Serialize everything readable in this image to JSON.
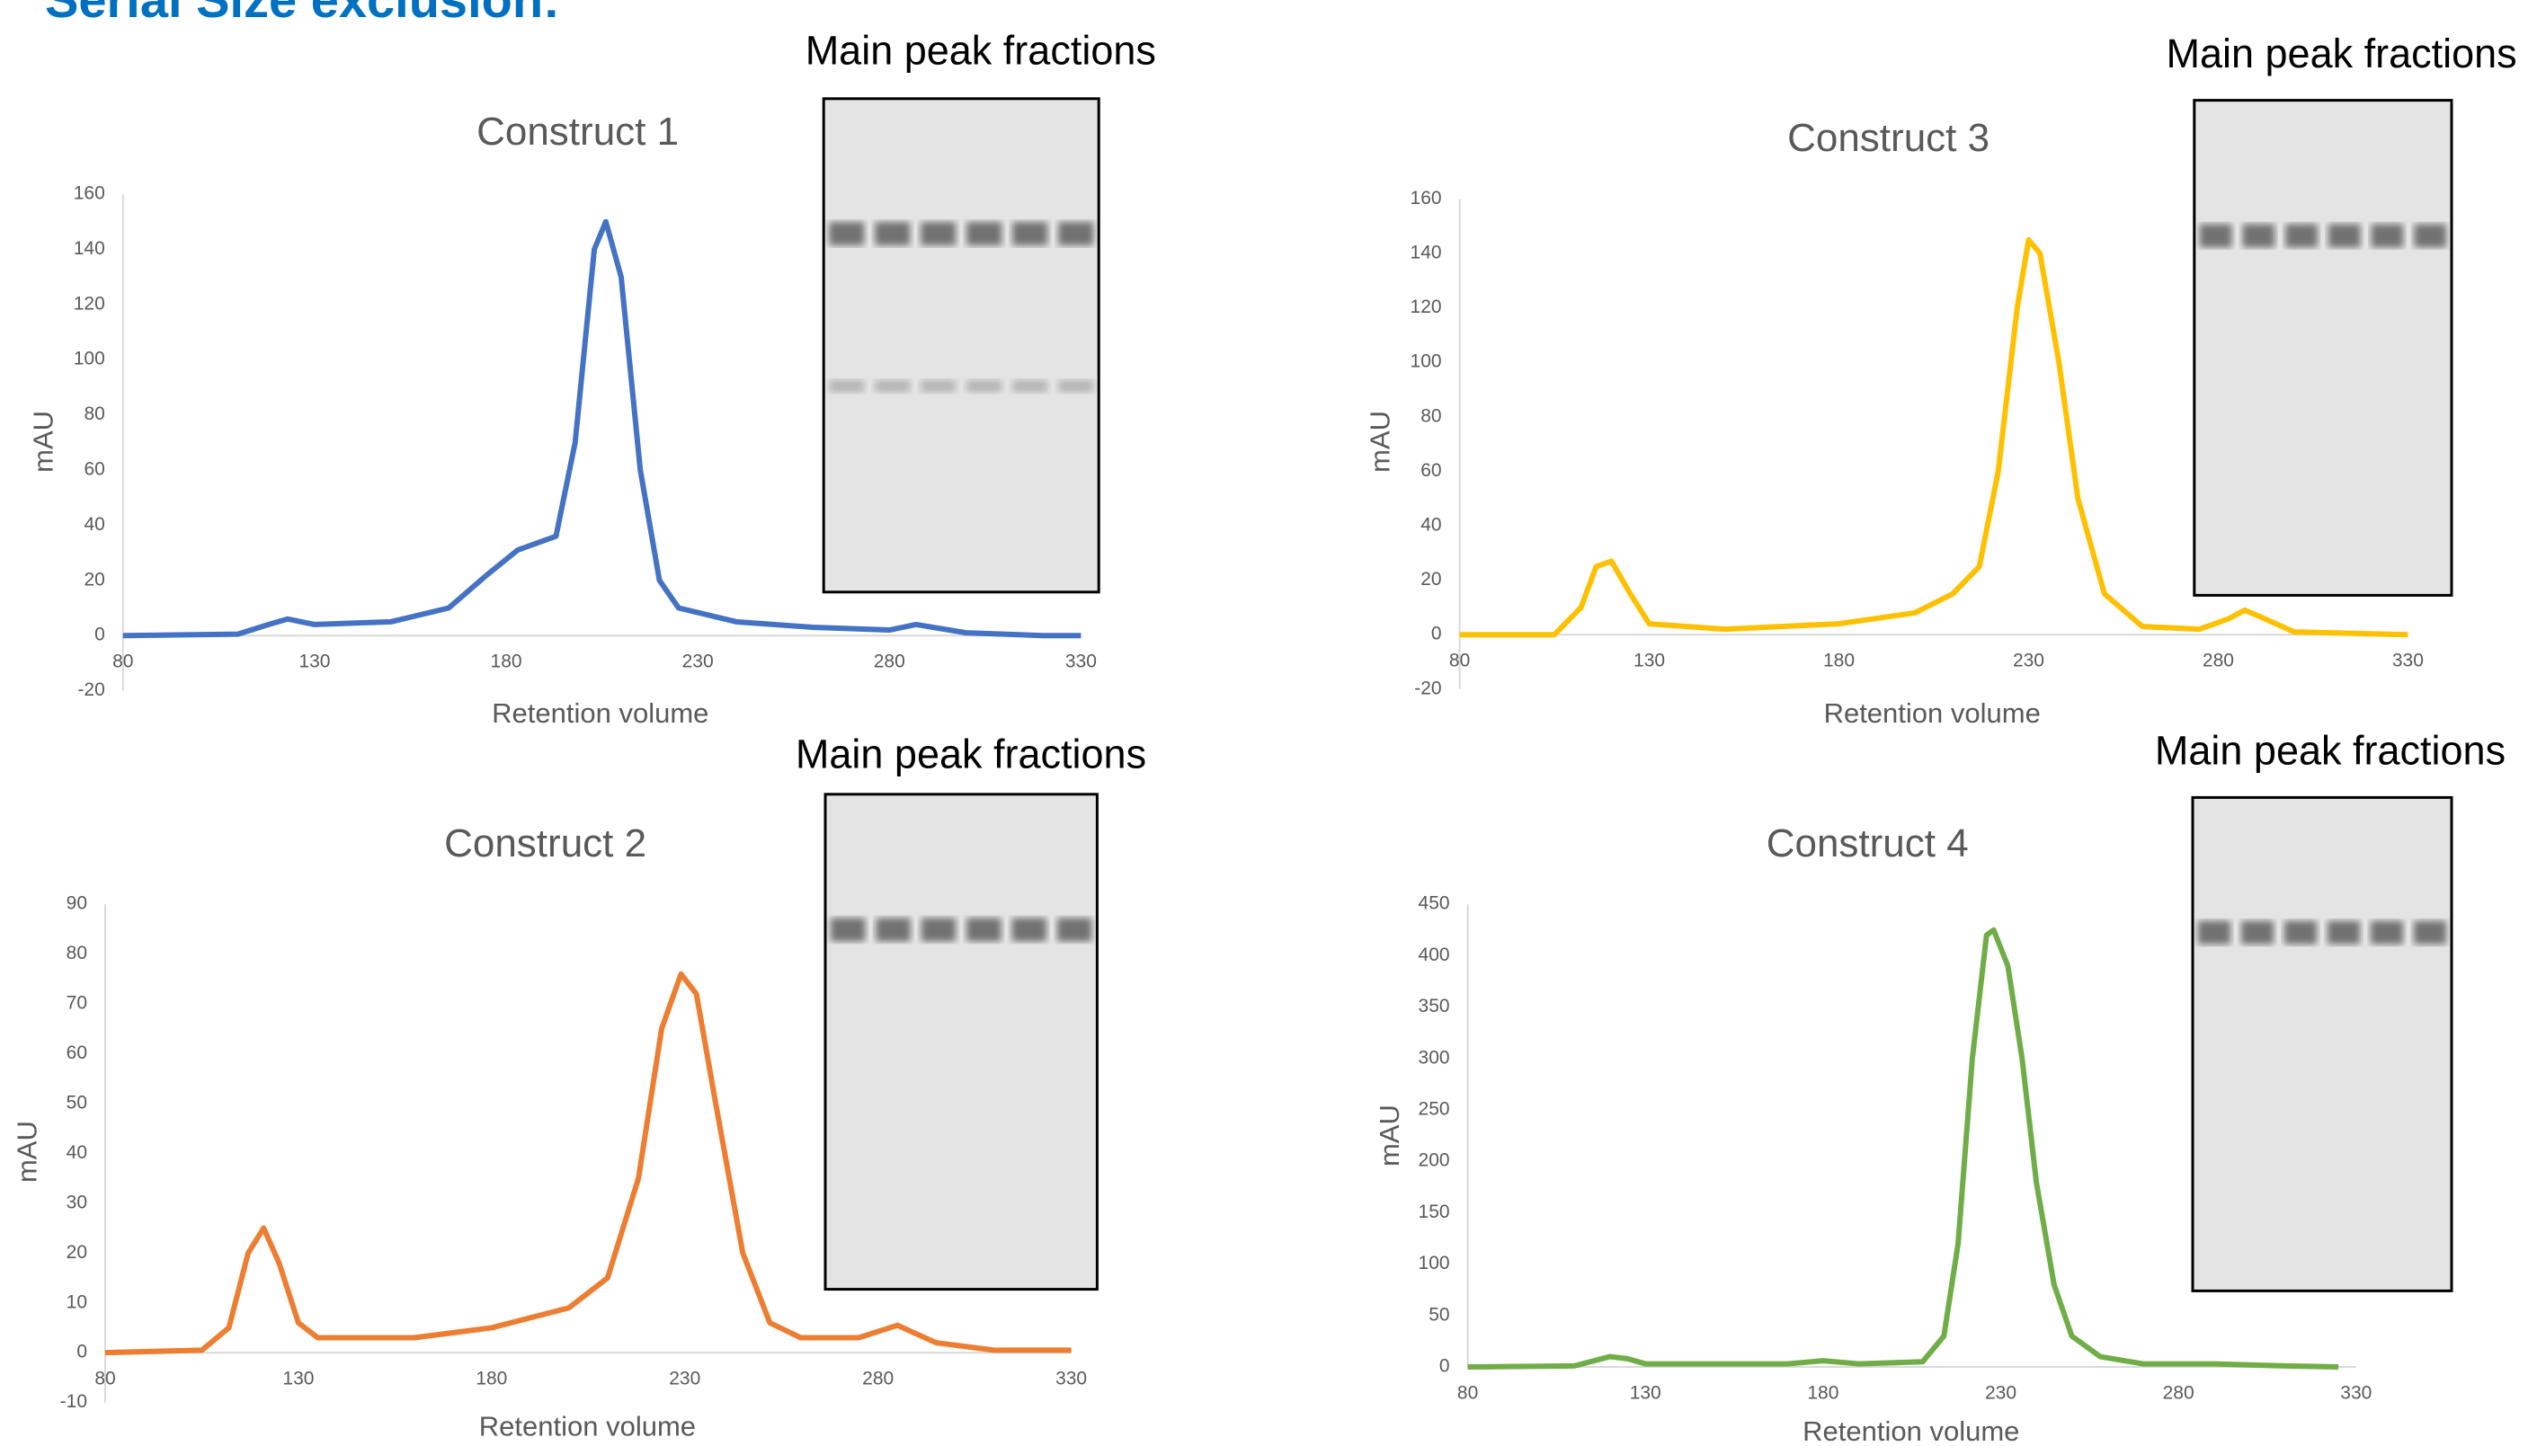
{
  "title": "Serial Size exclusion:",
  "chart_data": [
    {
      "type": "line",
      "title": "Construct 1",
      "annotation": "Main peak fractions",
      "x_label": "Retention volume",
      "y_label": "mAU",
      "xlim": [
        80,
        330
      ],
      "xticks": [
        80,
        130,
        180,
        230,
        280,
        330
      ],
      "ylim": [
        -20,
        160
      ],
      "yticks": [
        -20,
        0,
        20,
        40,
        60,
        80,
        100,
        120,
        140,
        160
      ],
      "series": [
        {
          "color": "#4472c4",
          "x": [
            80,
            110,
            118,
            123,
            130,
            150,
            165,
            175,
            183,
            193,
            198,
            203,
            206,
            210,
            215,
            220,
            225,
            240,
            260,
            280,
            287,
            300,
            320,
            330
          ],
          "values": [
            0,
            0.5,
            4,
            6,
            4,
            5,
            10,
            22,
            31,
            36,
            70,
            140,
            150,
            130,
            60,
            20,
            10,
            5,
            3,
            2,
            4,
            1,
            0,
            0
          ]
        }
      ]
    },
    {
      "type": "line",
      "title": "Construct 2",
      "annotation": "Main peak fractions",
      "x_label": "Retention volume",
      "y_label": "mAU",
      "xlim": [
        80,
        330
      ],
      "xticks": [
        80,
        130,
        180,
        230,
        280,
        330
      ],
      "ylim": [
        -10,
        90
      ],
      "yticks": [
        -10,
        0,
        10,
        20,
        30,
        40,
        50,
        60,
        70,
        80,
        90
      ],
      "series": [
        {
          "color": "#ed7d31",
          "x": [
            80,
            105,
            112,
            117,
            121,
            125,
            130,
            135,
            160,
            180,
            200,
            210,
            218,
            224,
            229,
            233,
            238,
            245,
            252,
            260,
            275,
            285,
            295,
            310,
            330
          ],
          "values": [
            0,
            0.5,
            5,
            20,
            25,
            18,
            6,
            3,
            3,
            5,
            9,
            15,
            35,
            65,
            76,
            72,
            50,
            20,
            6,
            3,
            3,
            5.5,
            2,
            0.5,
            0.5
          ]
        }
      ]
    },
    {
      "type": "line",
      "title": "Construct 3",
      "annotation": "Main peak fractions",
      "x_label": "Retention volume",
      "y_label": "mAU",
      "xlim": [
        80,
        330
      ],
      "xticks": [
        80,
        130,
        180,
        230,
        280,
        330
      ],
      "ylim": [
        -20,
        160
      ],
      "yticks": [
        -20,
        0,
        20,
        40,
        60,
        80,
        100,
        120,
        140,
        160
      ],
      "series": [
        {
          "color": "#ffc000",
          "x": [
            80,
            105,
            112,
            116,
            120,
            125,
            130,
            150,
            180,
            200,
            210,
            217,
            222,
            227,
            230,
            233,
            238,
            243,
            250,
            260,
            275,
            283,
            287,
            292,
            300,
            330
          ],
          "values": [
            0,
            0,
            10,
            25,
            27,
            15,
            4,
            2,
            4,
            8,
            15,
            25,
            60,
            120,
            145,
            140,
            100,
            50,
            15,
            3,
            2,
            6,
            9,
            6,
            1,
            0
          ]
        }
      ]
    },
    {
      "type": "line",
      "title": "Construct 4",
      "annotation": "Main peak fractions",
      "x_label": "Retention volume",
      "y_label": "mAU",
      "xlim": [
        80,
        330
      ],
      "xticks": [
        80,
        130,
        180,
        230,
        280,
        330
      ],
      "ylim": [
        0,
        450
      ],
      "yticks": [
        0,
        50,
        100,
        150,
        200,
        250,
        300,
        350,
        400,
        450
      ],
      "series": [
        {
          "color": "#70ad47",
          "x": [
            80,
            110,
            120,
            125,
            130,
            170,
            180,
            190,
            208,
            214,
            218,
            222,
            226,
            228,
            232,
            236,
            240,
            245,
            250,
            258,
            270,
            290,
            310,
            325
          ],
          "values": [
            0,
            1,
            10,
            8,
            3,
            3,
            6,
            3,
            5,
            30,
            120,
            300,
            420,
            425,
            390,
            300,
            180,
            80,
            30,
            10,
            3,
            3,
            1,
            0
          ]
        }
      ]
    }
  ]
}
